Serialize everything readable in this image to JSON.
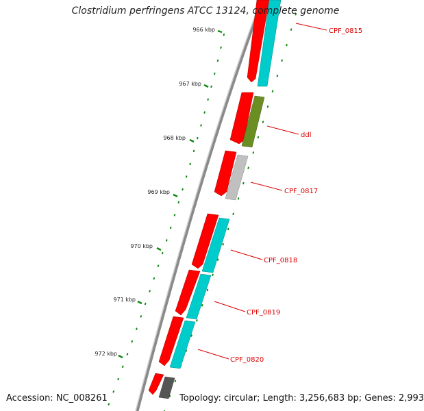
{
  "title": "Clostridium perfringens ATCC 13124, complete genome",
  "footer": {
    "accession": "Accession: NC_008261",
    "summary": "Topology: circular; Length: 3,256,683 bp; Genes: 2,993"
  },
  "scale": {
    "unit": "kbp",
    "labels": [
      "966 kbp",
      "967 kbp",
      "968 kbp",
      "969 kbp",
      "970 kbp",
      "971 kbp",
      "972 kbp"
    ]
  },
  "genes": [
    {
      "label": "CPF_0815",
      "outer_color": "#ff0000",
      "inner_color": "#00d0d0"
    },
    {
      "label": "ddl",
      "outer_color": "#ff0000",
      "inner_color": "#6b8e23"
    },
    {
      "label": "CPF_0817",
      "outer_color": "#ff0000",
      "inner_color": "#bdbdbd"
    },
    {
      "label": "CPF_0818",
      "outer_color": "#ff0000",
      "inner_color": "#00d0d0"
    },
    {
      "label": "CPF_0819",
      "outer_color": "#ff0000",
      "inner_color": "#00d0d0"
    },
    {
      "label": "CPF_0820",
      "outer_color": "#ff0000",
      "inner_color": "#00d0d0"
    },
    {
      "label": "",
      "outer_color": "#ff0000",
      "inner_color": "#555555"
    }
  ],
  "colors": {
    "backbone": "#808080",
    "tick": "#118811",
    "callout": "#dd0000"
  }
}
